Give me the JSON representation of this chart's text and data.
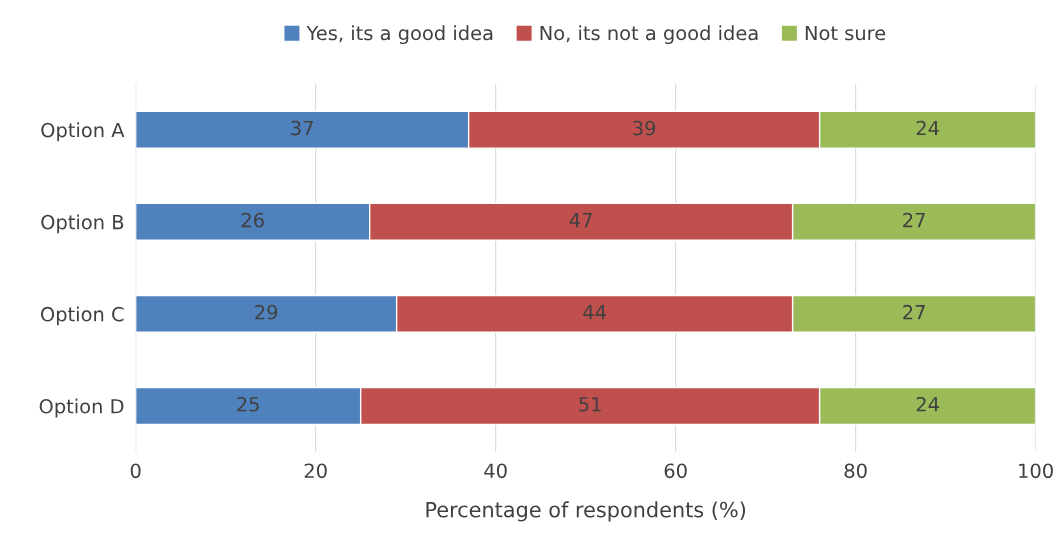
{
  "chart_data": {
    "type": "bar",
    "orientation": "horizontal",
    "stacked": true,
    "data_labels": true,
    "categories": [
      "Option A",
      "Option B",
      "Option C",
      "Option D"
    ],
    "series": [
      {
        "name": "Yes, its a good idea",
        "color": "#4f81bd",
        "values": [
          37,
          26,
          29,
          25
        ]
      },
      {
        "name": "No, its not a good idea",
        "color": "#c0504d",
        "values": [
          39,
          47,
          44,
          51
        ]
      },
      {
        "name": "Not sure",
        "color": "#9bbb59",
        "values": [
          24,
          27,
          27,
          24
        ]
      }
    ],
    "xlim": [
      0,
      100
    ],
    "xticks": [
      0,
      20,
      40,
      60,
      80,
      100
    ],
    "xlabel": "Percentage of respondents (%)",
    "grid": "x",
    "legend": "top"
  }
}
